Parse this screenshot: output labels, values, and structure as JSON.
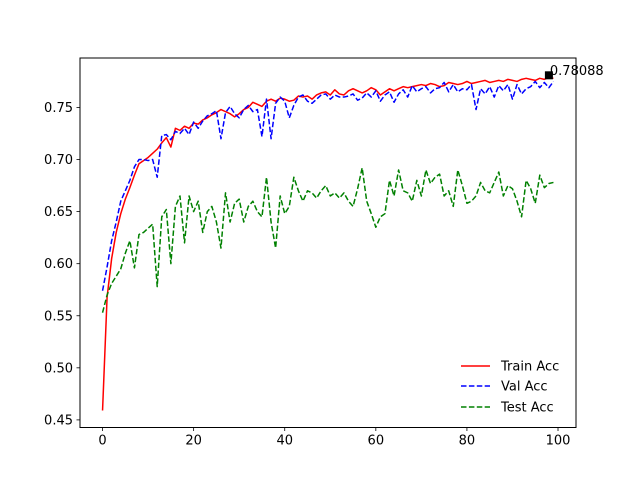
{
  "chart_data": {
    "type": "line",
    "title": "",
    "xlabel": "",
    "ylabel": "",
    "xlim": [
      -4.95,
      103.95
    ],
    "ylim": [
      0.4427,
      0.7975
    ],
    "xticks": [
      0,
      20,
      40,
      60,
      80,
      100
    ],
    "yticks": [
      0.45,
      0.5,
      0.55,
      0.6,
      0.65,
      0.7,
      0.75
    ],
    "ytick_labels": [
      "0.45",
      "0.50",
      "0.55",
      "0.60",
      "0.65",
      "0.70",
      "0.75"
    ],
    "grid": false,
    "legend_position": "lower-right",
    "annotation": {
      "x": 98,
      "y": 0.78088,
      "text": "0.78088",
      "marker": "square"
    },
    "series": [
      {
        "name": "Train Acc",
        "color": "#ff0000",
        "dash": "solid",
        "values": [
          0.459,
          0.568,
          0.605,
          0.63,
          0.648,
          0.662,
          0.673,
          0.685,
          0.696,
          0.699,
          0.702,
          0.706,
          0.71,
          0.716,
          0.721,
          0.712,
          0.73,
          0.728,
          0.732,
          0.73,
          0.735,
          0.734,
          0.738,
          0.74,
          0.743,
          0.745,
          0.748,
          0.746,
          0.744,
          0.741,
          0.744,
          0.748,
          0.75,
          0.755,
          0.753,
          0.751,
          0.756,
          0.758,
          0.756,
          0.759,
          0.758,
          0.756,
          0.757,
          0.761,
          0.76,
          0.761,
          0.758,
          0.762,
          0.764,
          0.765,
          0.762,
          0.767,
          0.763,
          0.762,
          0.766,
          0.768,
          0.766,
          0.764,
          0.766,
          0.769,
          0.767,
          0.762,
          0.765,
          0.768,
          0.766,
          0.768,
          0.77,
          0.769,
          0.77,
          0.771,
          0.772,
          0.771,
          0.773,
          0.772,
          0.77,
          0.771,
          0.774,
          0.773,
          0.772,
          0.773,
          0.775,
          0.773,
          0.774,
          0.775,
          0.776,
          0.774,
          0.775,
          0.776,
          0.775,
          0.777,
          0.776,
          0.775,
          0.777,
          0.778,
          0.777,
          0.776,
          0.778,
          0.777,
          0.7788,
          0.778
        ]
      },
      {
        "name": "Val Acc",
        "color": "#0000ff",
        "dash": "dashed",
        "values": [
          0.574,
          0.597,
          0.622,
          0.64,
          0.66,
          0.67,
          0.68,
          0.693,
          0.7,
          0.7,
          0.699,
          0.7,
          0.683,
          0.723,
          0.724,
          0.719,
          0.727,
          0.725,
          0.73,
          0.724,
          0.736,
          0.73,
          0.737,
          0.742,
          0.744,
          0.747,
          0.72,
          0.745,
          0.751,
          0.744,
          0.74,
          0.748,
          0.752,
          0.746,
          0.748,
          0.722,
          0.758,
          0.72,
          0.754,
          0.76,
          0.756,
          0.74,
          0.752,
          0.76,
          0.762,
          0.756,
          0.754,
          0.758,
          0.762,
          0.763,
          0.758,
          0.762,
          0.76,
          0.76,
          0.761,
          0.763,
          0.757,
          0.759,
          0.764,
          0.76,
          0.766,
          0.756,
          0.762,
          0.765,
          0.755,
          0.763,
          0.767,
          0.76,
          0.771,
          0.765,
          0.768,
          0.77,
          0.764,
          0.768,
          0.769,
          0.774,
          0.765,
          0.772,
          0.765,
          0.768,
          0.767,
          0.772,
          0.748,
          0.768,
          0.763,
          0.77,
          0.76,
          0.771,
          0.766,
          0.772,
          0.758,
          0.772,
          0.763,
          0.768,
          0.77,
          0.775,
          0.769,
          0.774,
          0.769,
          0.775
        ]
      },
      {
        "name": "Test Acc",
        "color": "#008000",
        "dash": "dashed",
        "values": [
          0.553,
          0.57,
          0.581,
          0.588,
          0.595,
          0.61,
          0.622,
          0.596,
          0.628,
          0.63,
          0.634,
          0.638,
          0.578,
          0.645,
          0.652,
          0.6,
          0.655,
          0.665,
          0.62,
          0.665,
          0.65,
          0.66,
          0.63,
          0.65,
          0.655,
          0.64,
          0.615,
          0.668,
          0.64,
          0.658,
          0.662,
          0.64,
          0.655,
          0.66,
          0.65,
          0.645,
          0.683,
          0.64,
          0.615,
          0.665,
          0.648,
          0.655,
          0.683,
          0.67,
          0.66,
          0.67,
          0.668,
          0.663,
          0.67,
          0.675,
          0.665,
          0.668,
          0.663,
          0.668,
          0.66,
          0.655,
          0.672,
          0.692,
          0.66,
          0.648,
          0.635,
          0.645,
          0.648,
          0.68,
          0.665,
          0.69,
          0.67,
          0.668,
          0.66,
          0.68,
          0.665,
          0.69,
          0.677,
          0.683,
          0.686,
          0.665,
          0.67,
          0.655,
          0.69,
          0.675,
          0.658,
          0.66,
          0.665,
          0.678,
          0.67,
          0.668,
          0.678,
          0.688,
          0.665,
          0.675,
          0.672,
          0.66,
          0.645,
          0.68,
          0.672,
          0.658,
          0.685,
          0.673,
          0.677,
          0.678
        ]
      }
    ]
  }
}
